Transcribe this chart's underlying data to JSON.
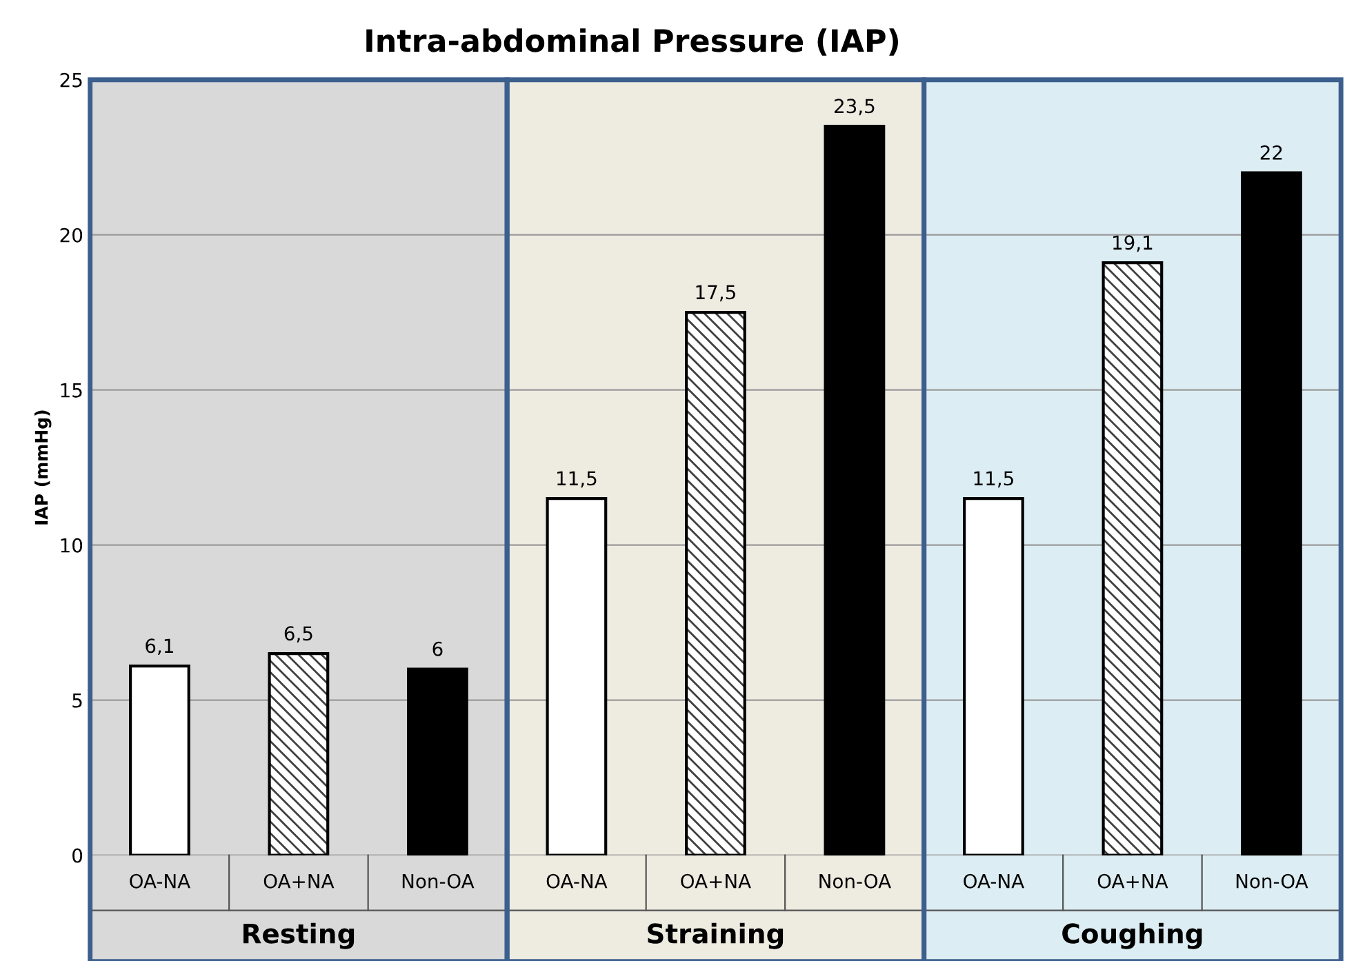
{
  "chart_data": {
    "type": "bar",
    "title": "Intra-abdominal Pressure (IAP)",
    "ylabel": "IAP (mmHg)",
    "categories": [
      "OA-NA",
      "OA+NA",
      "Non-OA",
      "OA-NA",
      "OA+NA",
      "Non-OA",
      "OA-NA",
      "OA+NA",
      "Non-OA"
    ],
    "values": [
      6.1,
      6.5,
      6,
      11.5,
      17.5,
      23.5,
      11.5,
      19.1,
      22
    ],
    "colors": [
      "#ffffff",
      "#404040",
      "#000000",
      "#ffffff",
      "#404040",
      "#000000",
      "#ffffff",
      "#404040",
      "#000000"
    ],
    "value_labels": [
      "6,1",
      "6,5",
      "6",
      "11,5",
      "17,5",
      "23,5",
      "11,5",
      "19,1",
      "22"
    ],
    "annotations": [
      "Resting",
      "Straining",
      "Coughing"
    ],
    "ylim": [
      0,
      25
    ],
    "yticks": [
      0,
      5,
      10,
      15,
      20,
      25
    ],
    "grid": "y"
  }
}
